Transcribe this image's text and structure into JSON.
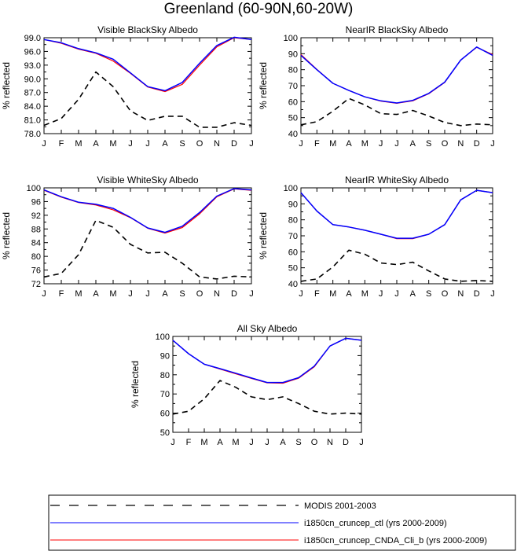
{
  "title": "Greenland (60-90N,60-20W)",
  "months": [
    "J",
    "F",
    "M",
    "A",
    "M",
    "J",
    "J",
    "A",
    "S",
    "O",
    "N",
    "D",
    "J"
  ],
  "legend": [
    {
      "label": "MODIS 2001-2003",
      "color": "#000000",
      "dash": true
    },
    {
      "label": "i1850cn_cruncep_ctl (yrs 2000-2009)",
      "color": "#0000ff",
      "dash": false
    },
    {
      "label": "i1850cn_cruncep_CNDA_Cli_b (yrs 2000-2009)",
      "color": "#ff0000",
      "dash": false
    }
  ],
  "chart_data": [
    {
      "type": "line",
      "title": "Visible BlackSky Albedo",
      "ylabel": "% reflected",
      "ylim": [
        78,
        99
      ],
      "yticks": [
        "78.0",
        "81.0",
        "84.0",
        "87.0",
        "90.0",
        "93.0",
        "96.0",
        "99.0"
      ],
      "x": [
        "J",
        "F",
        "M",
        "A",
        "M",
        "J",
        "J",
        "A",
        "S",
        "O",
        "N",
        "D",
        "J"
      ],
      "series": [
        {
          "name": "MODIS 2001-2003",
          "values": [
            79.8,
            81.3,
            85.5,
            91.5,
            88.3,
            83.0,
            80.9,
            81.8,
            81.8,
            79.4,
            79.4,
            80.4,
            79.8
          ]
        },
        {
          "name": "i1850cn_cruncep_ctl (yrs 2000-2009)",
          "values": [
            98.6,
            97.9,
            96.6,
            95.7,
            94.3,
            91.3,
            88.3,
            87.4,
            89.2,
            93.4,
            97.3,
            99.1,
            98.6
          ]
        },
        {
          "name": "i1850cn_cruncep_CNDA_Cli_b (yrs 2000-2009)",
          "values": [
            98.6,
            97.8,
            96.5,
            95.6,
            93.9,
            91.2,
            88.2,
            87.2,
            88.8,
            93.0,
            97.0,
            99.0,
            98.6
          ]
        }
      ]
    },
    {
      "type": "line",
      "title": "NearIR BlackSky Albedo",
      "ylabel": "% reflected",
      "ylim": [
        40,
        100
      ],
      "yticks": [
        "40",
        "50",
        "60",
        "70",
        "80",
        "90",
        "100"
      ],
      "x": [
        "J",
        "F",
        "M",
        "A",
        "M",
        "J",
        "J",
        "A",
        "S",
        "O",
        "N",
        "D",
        "J"
      ],
      "series": [
        {
          "name": "MODIS 2001-2003",
          "values": [
            45.5,
            47.5,
            54.0,
            62.0,
            58.0,
            52.5,
            52.0,
            54.5,
            51.0,
            47.0,
            45.0,
            46.0,
            45.5
          ]
        },
        {
          "name": "i1850cn_cruncep_ctl (yrs 2000-2009)",
          "values": [
            89.0,
            80.0,
            71.5,
            67.0,
            63.0,
            60.5,
            59.2,
            60.8,
            65.2,
            72.2,
            86.0,
            94.2,
            89.0
          ]
        },
        {
          "name": "i1850cn_cruncep_CNDA_Cli_b (yrs 2000-2009)",
          "values": [
            89.5,
            80.2,
            71.5,
            67.0,
            63.0,
            60.3,
            59.0,
            60.5,
            65.0,
            72.0,
            86.0,
            94.0,
            89.5
          ]
        }
      ]
    },
    {
      "type": "line",
      "title": "Visible WhiteSky Albedo",
      "ylabel": "% reflected",
      "ylim": [
        72,
        100
      ],
      "yticks": [
        "72",
        "76",
        "80",
        "84",
        "88",
        "92",
        "96",
        "100"
      ],
      "x": [
        "J",
        "F",
        "M",
        "A",
        "M",
        "J",
        "J",
        "A",
        "S",
        "O",
        "N",
        "D",
        "J"
      ],
      "series": [
        {
          "name": "MODIS 2001-2003",
          "values": [
            74.0,
            75.0,
            80.5,
            90.5,
            88.5,
            83.5,
            81.0,
            81.2,
            78.0,
            74.0,
            73.4,
            74.2,
            74.0
          ]
        },
        {
          "name": "i1850cn_cruncep_ctl (yrs 2000-2009)",
          "values": [
            99.4,
            97.4,
            95.8,
            95.2,
            94.0,
            91.4,
            88.3,
            87.0,
            88.8,
            92.8,
            97.6,
            99.8,
            99.4
          ]
        },
        {
          "name": "i1850cn_cruncep_CNDA_Cli_b (yrs 2000-2009)",
          "values": [
            99.3,
            97.3,
            95.7,
            95.0,
            93.6,
            91.3,
            88.2,
            86.8,
            88.4,
            92.4,
            97.4,
            99.7,
            99.3
          ]
        }
      ]
    },
    {
      "type": "line",
      "title": "NearIR WhiteSky Albedo",
      "ylabel": "% reflected",
      "ylim": [
        40,
        100
      ],
      "yticks": [
        "40",
        "50",
        "60",
        "70",
        "80",
        "90",
        "100"
      ],
      "x": [
        "J",
        "F",
        "M",
        "A",
        "M",
        "J",
        "J",
        "A",
        "S",
        "O",
        "N",
        "D",
        "J"
      ],
      "series": [
        {
          "name": "MODIS 2001-2003",
          "values": [
            41.5,
            43.0,
            50.5,
            61.0,
            58.5,
            53.0,
            52.0,
            53.5,
            48.0,
            43.0,
            41.5,
            42.0,
            41.5
          ]
        },
        {
          "name": "i1850cn_cruncep_ctl (yrs 2000-2009)",
          "values": [
            97.0,
            85.5,
            77.0,
            75.5,
            73.5,
            71.0,
            68.5,
            68.5,
            71.0,
            77.0,
            92.5,
            98.5,
            97.0
          ]
        },
        {
          "name": "i1850cn_cruncep_CNDA_Cli_b (yrs 2000-2009)",
          "values": [
            97.0,
            85.5,
            77.0,
            75.5,
            73.5,
            71.0,
            68.2,
            68.2,
            71.0,
            77.0,
            92.5,
            98.5,
            97.0
          ]
        }
      ]
    },
    {
      "type": "line",
      "title": "All Sky Albedo",
      "ylabel": "% reflected",
      "ylim": [
        50,
        100
      ],
      "yticks": [
        "50",
        "60",
        "70",
        "80",
        "90",
        "100"
      ],
      "x": [
        "J",
        "F",
        "M",
        "A",
        "M",
        "J",
        "J",
        "A",
        "S",
        "O",
        "N",
        "D",
        "J"
      ],
      "series": [
        {
          "name": "MODIS 2001-2003",
          "values": [
            59.5,
            61.0,
            67.5,
            77.0,
            73.5,
            68.5,
            67.0,
            68.5,
            65.0,
            61.0,
            59.5,
            60.0,
            59.5
          ]
        },
        {
          "name": "i1850cn_cruncep_ctl (yrs 2000-2009)",
          "values": [
            98.0,
            91.0,
            85.5,
            83.2,
            80.8,
            78.3,
            76.0,
            76.0,
            78.5,
            84.5,
            95.0,
            99.0,
            98.0
          ]
        },
        {
          "name": "i1850cn_cruncep_CNDA_Cli_b (yrs 2000-2009)",
          "values": [
            98.0,
            91.0,
            85.5,
            83.0,
            80.5,
            78.1,
            75.8,
            75.6,
            78.2,
            84.2,
            95.0,
            99.0,
            98.0
          ]
        }
      ]
    }
  ]
}
